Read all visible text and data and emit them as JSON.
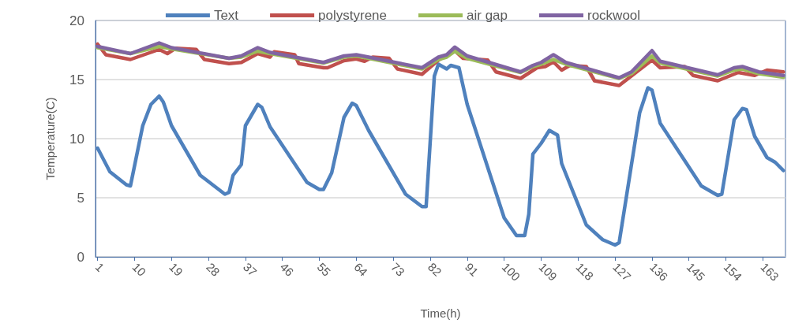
{
  "chart_data": {
    "type": "line",
    "xlabel": "Time(h)",
    "ylabel": "Temperature(C)",
    "xlim": [
      0.5,
      168.5
    ],
    "xticks": [
      1,
      10,
      19,
      28,
      37,
      46,
      55,
      64,
      73,
      82,
      91,
      100,
      109,
      118,
      127,
      136,
      145,
      154,
      163
    ],
    "ylim": [
      0,
      20
    ],
    "yticks": [
      0,
      5,
      10,
      15,
      20
    ],
    "grid": "y",
    "legend": "top",
    "marker": "none",
    "line_style": "solid",
    "series": [
      {
        "name": "Text",
        "color": "#4f81bd",
        "x": [
          1,
          4,
          8,
          9,
          12,
          14,
          16,
          17,
          19,
          26,
          32,
          33,
          34,
          36,
          37,
          40,
          41,
          43,
          52,
          55,
          56,
          58,
          61,
          63,
          64,
          67,
          76,
          80,
          81,
          83,
          84,
          86,
          87,
          89,
          91,
          100,
          103,
          105,
          106,
          107,
          109,
          111,
          113,
          114,
          120,
          124,
          127,
          128,
          133,
          135,
          136,
          138,
          148,
          152,
          153,
          156,
          158,
          159,
          161,
          164,
          166,
          168
        ],
        "values": [
          9.2,
          7.2,
          6.1,
          6.0,
          11.1,
          12.9,
          13.6,
          13.1,
          11.1,
          6.9,
          5.3,
          5.45,
          6.9,
          7.8,
          11.1,
          12.9,
          12.65,
          11.0,
          6.3,
          5.7,
          5.7,
          7.1,
          11.8,
          13.0,
          12.8,
          10.7,
          5.3,
          4.25,
          4.25,
          15.3,
          16.3,
          15.9,
          16.2,
          16.0,
          12.9,
          3.3,
          1.8,
          1.8,
          3.6,
          8.7,
          9.6,
          10.7,
          10.3,
          7.9,
          2.7,
          1.45,
          1.0,
          1.2,
          12.2,
          14.3,
          14.1,
          11.3,
          6.0,
          5.2,
          5.3,
          11.6,
          12.55,
          12.45,
          10.2,
          8.4,
          8.0,
          7.3
        ]
      },
      {
        "name": "polystyrene",
        "color": "#c0504d",
        "x": [
          1,
          3,
          9,
          16,
          18,
          20,
          25,
          27,
          33,
          36,
          40,
          43,
          44,
          49,
          50,
          56,
          57,
          61,
          64,
          66,
          68,
          72,
          74,
          80,
          84,
          88,
          90,
          96,
          98,
          104,
          108,
          110,
          112,
          114,
          116,
          120,
          122,
          128,
          136,
          138,
          144,
          146,
          152,
          157,
          161,
          164,
          168
        ],
        "values": [
          18.0,
          17.1,
          16.7,
          17.55,
          17.2,
          17.65,
          17.55,
          16.7,
          16.35,
          16.45,
          17.2,
          16.9,
          17.35,
          17.1,
          16.35,
          16.0,
          16.0,
          16.6,
          16.75,
          16.55,
          16.9,
          16.8,
          15.9,
          15.45,
          16.65,
          17.45,
          16.8,
          16.65,
          15.65,
          15.1,
          16.0,
          16.1,
          16.5,
          15.8,
          16.2,
          16.1,
          14.9,
          14.5,
          16.65,
          16.0,
          16.1,
          15.35,
          14.9,
          15.6,
          15.35,
          15.8,
          15.65
        ]
      },
      {
        "name": "air gap",
        "color": "#9bbb59",
        "x": [
          1,
          9,
          16,
          19,
          33,
          36,
          40,
          43,
          56,
          61,
          64,
          67,
          80,
          84,
          86,
          88,
          91,
          104,
          107,
          109,
          112,
          115,
          128,
          131,
          136,
          138,
          152,
          156,
          158,
          162,
          168
        ],
        "values": [
          17.7,
          17.2,
          17.8,
          17.6,
          16.8,
          16.9,
          17.4,
          17.2,
          16.4,
          16.9,
          17.0,
          16.8,
          15.9,
          16.7,
          16.9,
          17.4,
          16.8,
          15.6,
          16.1,
          16.3,
          16.7,
          16.3,
          15.1,
          15.5,
          17.0,
          16.4,
          15.3,
          15.8,
          15.9,
          15.5,
          15.2
        ]
      },
      {
        "name": "rockwool",
        "color": "#8064a2",
        "x": [
          1,
          9,
          16,
          19,
          33,
          36,
          40,
          43,
          56,
          61,
          64,
          67,
          80,
          84,
          86,
          88,
          91,
          104,
          107,
          109,
          112,
          115,
          128,
          131,
          136,
          138,
          152,
          156,
          158,
          162,
          168
        ],
        "values": [
          17.8,
          17.2,
          18.1,
          17.7,
          16.8,
          17.0,
          17.7,
          17.3,
          16.45,
          17.0,
          17.1,
          16.9,
          16.0,
          16.9,
          17.1,
          17.75,
          17.0,
          15.65,
          16.2,
          16.45,
          17.1,
          16.45,
          15.15,
          15.65,
          17.45,
          16.55,
          15.4,
          16.0,
          16.1,
          15.65,
          15.35
        ]
      }
    ]
  }
}
